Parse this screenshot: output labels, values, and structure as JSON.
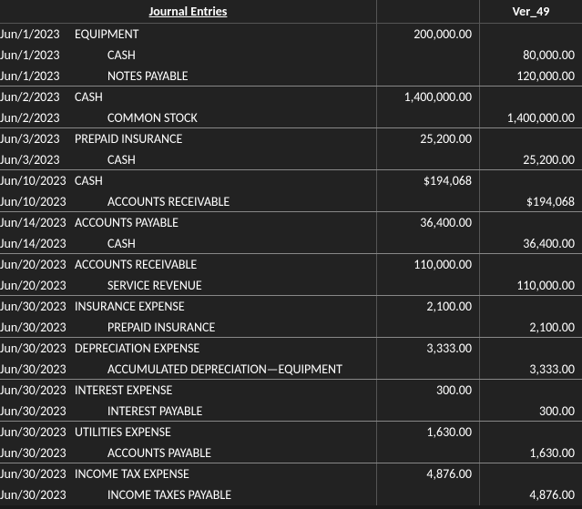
{
  "header": {
    "title": "Journal Entries",
    "version": "Ver_49"
  },
  "colors": {
    "background": "#222222",
    "text": "#ffffff",
    "border": "#555555",
    "group_border": "#888888"
  },
  "entries": [
    {
      "date": "Jun/1/2023",
      "account": "EQUIPMENT",
      "indent": 0,
      "debit": "200,000.00",
      "credit": "",
      "group_end": false
    },
    {
      "date": "Jun/1/2023",
      "account": "CASH",
      "indent": 1,
      "debit": "",
      "credit": "80,000.00",
      "group_end": false
    },
    {
      "date": "Jun/1/2023",
      "account": "NOTES PAYABLE",
      "indent": 1,
      "debit": "",
      "credit": "120,000.00",
      "group_end": true
    },
    {
      "date": "Jun/2/2023",
      "account": "CASH",
      "indent": 0,
      "debit": "1,400,000.00",
      "credit": "",
      "group_end": false
    },
    {
      "date": "Jun/2/2023",
      "account": "COMMON STOCK",
      "indent": 1,
      "debit": "",
      "credit": "1,400,000.00",
      "group_end": true
    },
    {
      "date": "Jun/3/2023",
      "account": "PREPAID INSURANCE",
      "indent": 0,
      "debit": "25,200.00",
      "credit": "",
      "group_end": false
    },
    {
      "date": "Jun/3/2023",
      "account": "CASH",
      "indent": 1,
      "debit": "",
      "credit": "25,200.00",
      "group_end": true
    },
    {
      "date": "Jun/10/2023",
      "account": "CASH",
      "indent": 0,
      "debit": "$194,068",
      "credit": "",
      "group_end": false
    },
    {
      "date": "Jun/10/2023",
      "account": "ACCOUNTS RECEIVABLE",
      "indent": 1,
      "debit": "",
      "credit": "$194,068",
      "group_end": true
    },
    {
      "date": "Jun/14/2023",
      "account": "ACCOUNTS PAYABLE",
      "indent": 0,
      "debit": "36,400.00",
      "credit": "",
      "group_end": false
    },
    {
      "date": "Jun/14/2023",
      "account": "CASH",
      "indent": 1,
      "debit": "",
      "credit": "36,400.00",
      "group_end": true
    },
    {
      "date": "Jun/20/2023",
      "account": "ACCOUNTS RECEIVABLE",
      "indent": 0,
      "debit": "110,000.00",
      "credit": "",
      "group_end": false
    },
    {
      "date": "Jun/20/2023",
      "account": "SERVICE REVENUE",
      "indent": 1,
      "debit": "",
      "credit": "110,000.00",
      "group_end": true
    },
    {
      "date": "Jun/30/2023",
      "account": "INSURANCE EXPENSE",
      "indent": 0,
      "debit": "2,100.00",
      "credit": "",
      "group_end": false
    },
    {
      "date": "Jun/30/2023",
      "account": "PREPAID INSURANCE",
      "indent": 1,
      "debit": "",
      "credit": "2,100.00",
      "group_end": true
    },
    {
      "date": "Jun/30/2023",
      "account": "DEPRECIATION EXPENSE",
      "indent": 0,
      "debit": "3,333.00",
      "credit": "",
      "group_end": false
    },
    {
      "date": "Jun/30/2023",
      "account": "ACCUMULATED DEPRECIATION—EQUIPMENT",
      "indent": 1,
      "debit": "",
      "credit": "3,333.00",
      "group_end": true
    },
    {
      "date": "Jun/30/2023",
      "account": "INTEREST EXPENSE",
      "indent": 0,
      "debit": "300.00",
      "credit": "",
      "group_end": false
    },
    {
      "date": "Jun/30/2023",
      "account": "INTEREST PAYABLE",
      "indent": 1,
      "debit": "",
      "credit": "300.00",
      "group_end": true
    },
    {
      "date": "Jun/30/2023",
      "account": "UTILITIES EXPENSE",
      "indent": 0,
      "debit": "1,630.00",
      "credit": "",
      "group_end": false
    },
    {
      "date": "Jun/30/2023",
      "account": "ACCOUNTS PAYABLE",
      "indent": 1,
      "debit": "",
      "credit": "1,630.00",
      "group_end": true
    },
    {
      "date": "Jun/30/2023",
      "account": "INCOME TAX EXPENSE",
      "indent": 0,
      "debit": "4,876.00",
      "credit": "",
      "group_end": false
    },
    {
      "date": "Jun/30/2023",
      "account": "INCOME TAXES PAYABLE",
      "indent": 1,
      "debit": "",
      "credit": "4,876.00",
      "group_end": false
    }
  ]
}
